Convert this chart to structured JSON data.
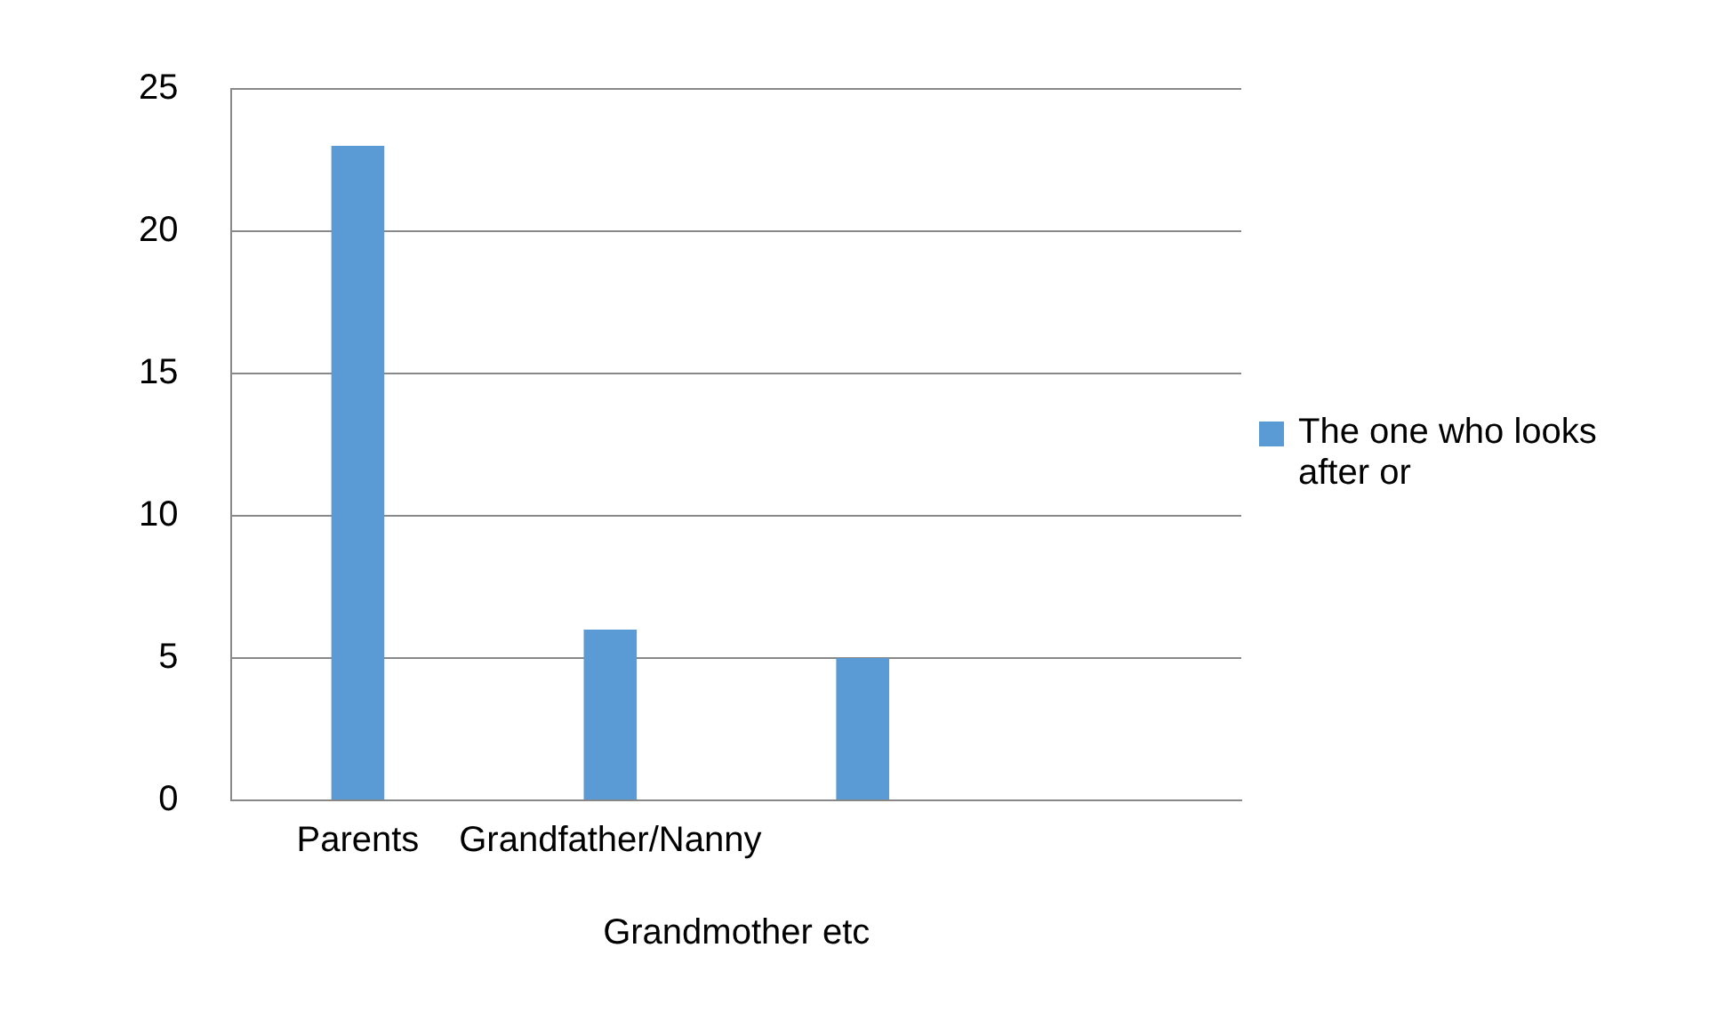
{
  "chart_data": {
    "type": "bar",
    "xlabel": "Grandmother etc",
    "categories": [
      "Parents",
      "Grandfather/Nanny",
      null,
      null
    ],
    "series": [
      {
        "name": "The one who looks after or",
        "color": "#5b9bd5",
        "values": [
          23,
          6,
          5,
          null
        ]
      }
    ],
    "ylim": [
      0,
      25
    ],
    "yticks": [
      0,
      5,
      10,
      15,
      20,
      25
    ],
    "grid": "y",
    "legend": "right"
  }
}
